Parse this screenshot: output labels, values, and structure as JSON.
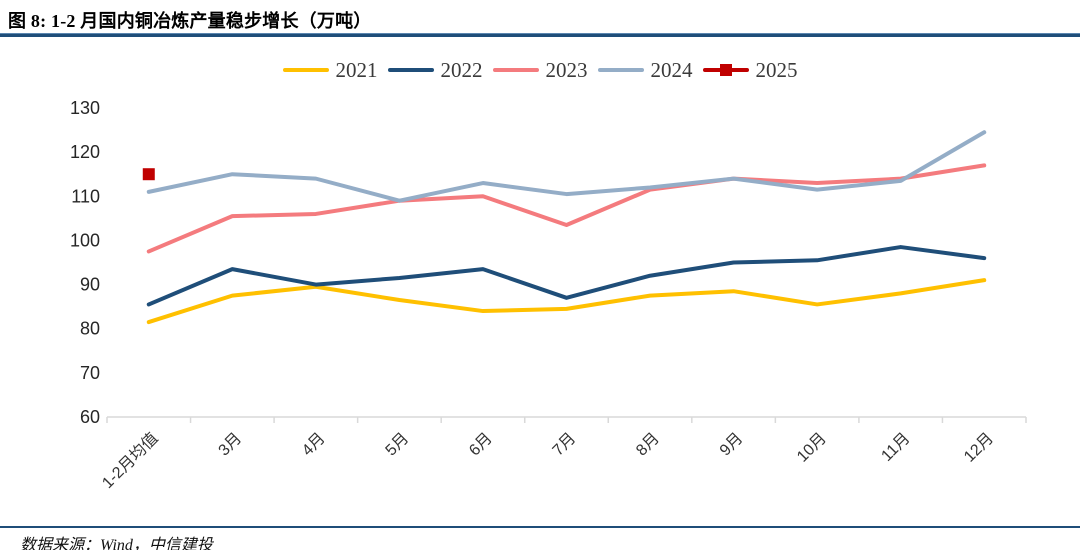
{
  "header": {
    "title": "图 8: 1-2 月国内铜冶炼产量稳步增长（万吨）"
  },
  "footer": {
    "source": "数据来源：Wind，中信建投"
  },
  "colors": {
    "rule": "#1F4E79",
    "axis_line": "#D9D9D9",
    "tick_label": "#262626",
    "x_label": "#333333"
  },
  "chart_data": {
    "type": "line",
    "title": "1-2 月国内铜冶炼产量稳步增长（万吨）",
    "categories": [
      "1-2月均值",
      "3月",
      "4月",
      "5月",
      "6月",
      "7月",
      "8月",
      "9月",
      "10月",
      "11月",
      "12月"
    ],
    "series": [
      {
        "name": "2021",
        "color": "#FFC000",
        "marker": "none",
        "values": [
          81.5,
          87.5,
          89.5,
          86.5,
          84,
          84.5,
          87.5,
          88.5,
          85.5,
          88,
          91
        ]
      },
      {
        "name": "2022",
        "color": "#1F4E79",
        "marker": "none",
        "values": [
          85.5,
          93.5,
          90,
          91.5,
          93.5,
          87,
          92,
          95,
          95.5,
          98.5,
          96
        ]
      },
      {
        "name": "2023",
        "color": "#F47B7E",
        "marker": "none",
        "values": [
          97.5,
          105.5,
          106,
          109,
          110,
          103.5,
          111.5,
          114,
          113,
          114,
          117
        ]
      },
      {
        "name": "2024",
        "color": "#94ADC7",
        "marker": "none",
        "values": [
          111,
          115,
          114,
          109,
          113,
          110.5,
          112,
          114,
          111.5,
          113.5,
          124.5
        ]
      },
      {
        "name": "2025",
        "color": "#C00000",
        "marker": "square",
        "values": [
          115,
          null,
          null,
          null,
          null,
          null,
          null,
          null,
          null,
          null,
          null
        ]
      }
    ],
    "ylim": [
      60,
      130
    ],
    "yticks": [
      60,
      70,
      80,
      90,
      100,
      110,
      120,
      130
    ],
    "grid": false,
    "legend_position": "top",
    "x_label_rotation": -45
  }
}
